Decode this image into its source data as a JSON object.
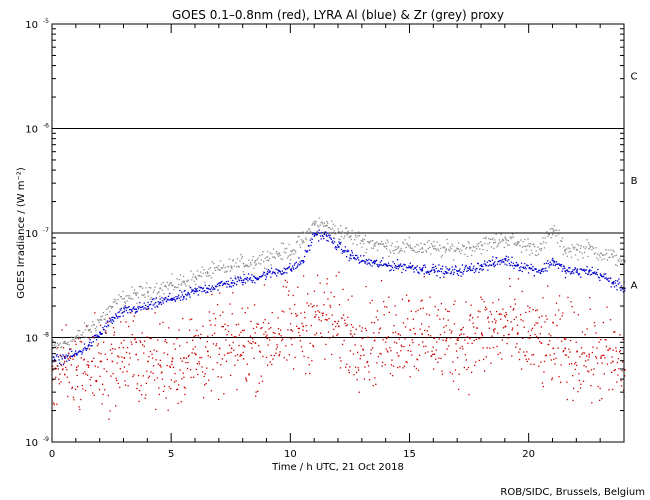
{
  "chart_data": {
    "type": "scatter",
    "title": "GOES 0.1–0.8nm (red), LYRA Al (blue) & Zr (grey) proxy",
    "xlabel": "Time / h UTC, 21 Oct 2018",
    "ylabel": "GOES Irradiance / (W m⁻²)",
    "xlim": [
      0,
      24
    ],
    "ylim": [
      1e-09,
      1e-05
    ],
    "yscale": "log",
    "x_ticks": [
      {
        "value": 0,
        "label": "0"
      },
      {
        "value": 5,
        "label": "5"
      },
      {
        "value": 10,
        "label": "10"
      },
      {
        "value": 15,
        "label": "15"
      },
      {
        "value": 20,
        "label": "20"
      }
    ],
    "y_ticks": [
      {
        "value": 1e-09,
        "base": "10",
        "exp": "-9"
      },
      {
        "value": 1e-08,
        "base": "10",
        "exp": "-8"
      },
      {
        "value": 1e-07,
        "base": "10",
        "exp": "-7"
      },
      {
        "value": 1e-06,
        "base": "10",
        "exp": "-6"
      },
      {
        "value": 1e-05,
        "base": "10",
        "exp": "-5"
      }
    ],
    "class_lines": [
      1e-08,
      1e-07,
      1e-06
    ],
    "flare_classes": [
      {
        "label": "A",
        "value": 3.2e-08
      },
      {
        "label": "B",
        "value": 3.2e-07
      },
      {
        "label": "C",
        "value": 3.2e-06
      }
    ],
    "series": [
      {
        "name": "Zr (grey)",
        "color": "#8c8c8c",
        "x": [
          0.0,
          0.5,
          1.0,
          1.5,
          2.0,
          2.5,
          3.0,
          3.5,
          4.0,
          4.5,
          5.0,
          5.5,
          6.0,
          6.5,
          7.0,
          7.5,
          8.0,
          8.5,
          9.0,
          9.5,
          10.0,
          10.5,
          11.0,
          11.5,
          12.0,
          12.5,
          13.0,
          13.5,
          14.0,
          14.5,
          15.0,
          15.5,
          16.0,
          16.5,
          17.0,
          17.5,
          18.0,
          18.5,
          19.0,
          19.5,
          20.0,
          20.5,
          21.0,
          21.5,
          22.0,
          22.5,
          23.0,
          23.5,
          24.0
        ],
        "y": [
          8e-09,
          9e-09,
          1e-08,
          1.2e-08,
          1.5e-08,
          2e-08,
          2.4e-08,
          2.6e-08,
          2.8e-08,
          3e-08,
          3.2e-08,
          3.5e-08,
          3.8e-08,
          4.2e-08,
          4.5e-08,
          4.8e-08,
          5.2e-08,
          5.5e-08,
          6e-08,
          6.5e-08,
          6.8e-08,
          8.5e-08,
          1.25e-07,
          1.2e-07,
          1.05e-07,
          9.5e-08,
          8.5e-08,
          8e-08,
          7.6e-08,
          7.5e-08,
          7.4e-08,
          7.3e-08,
          7.2e-08,
          7e-08,
          7.2e-08,
          7.4e-08,
          7.8e-08,
          8.2e-08,
          9e-08,
          8e-08,
          7.6e-08,
          7.2e-08,
          1.1e-07,
          7e-08,
          7e-08,
          7.2e-08,
          6.5e-08,
          6e-08,
          5.5e-08
        ]
      },
      {
        "name": "Al (blue)",
        "color": "#0000cc",
        "x": [
          0.0,
          0.5,
          1.0,
          1.5,
          2.0,
          2.5,
          3.0,
          3.5,
          4.0,
          4.5,
          5.0,
          5.5,
          6.0,
          6.5,
          7.0,
          7.5,
          8.0,
          8.5,
          9.0,
          9.5,
          10.0,
          10.5,
          11.0,
          11.5,
          12.0,
          12.5,
          13.0,
          13.5,
          14.0,
          14.5,
          15.0,
          15.5,
          16.0,
          16.5,
          17.0,
          17.5,
          18.0,
          18.5,
          19.0,
          19.5,
          20.0,
          20.5,
          21.0,
          21.5,
          22.0,
          22.5,
          23.0,
          23.5,
          24.0
        ],
        "y": [
          6e-09,
          6.5e-09,
          7e-09,
          8.5e-09,
          1.1e-08,
          1.5e-08,
          1.8e-08,
          1.9e-08,
          2e-08,
          2.2e-08,
          2.4e-08,
          2.5e-08,
          2.8e-08,
          3e-08,
          3.2e-08,
          3.4e-08,
          3.6e-08,
          3.8e-08,
          4.1e-08,
          4.4e-08,
          4.6e-08,
          5.5e-08,
          1e-07,
          9.5e-08,
          7.5e-08,
          6.2e-08,
          5.5e-08,
          5.2e-08,
          5e-08,
          4.9e-08,
          4.8e-08,
          4.6e-08,
          4.5e-08,
          4.3e-08,
          4.4e-08,
          4.6e-08,
          4.9e-08,
          5.2e-08,
          5.6e-08,
          5e-08,
          4.7e-08,
          4.4e-08,
          5.5e-08,
          4.4e-08,
          4.3e-08,
          4.4e-08,
          4e-08,
          3.4e-08,
          3e-08
        ]
      },
      {
        "name": "GOES 0.1–0.8nm (red)",
        "color": "#cc0000",
        "x": [
          0.0,
          0.5,
          1.0,
          1.5,
          2.0,
          2.5,
          3.0,
          3.5,
          4.0,
          4.5,
          5.0,
          5.5,
          6.0,
          6.5,
          7.0,
          7.5,
          8.0,
          8.5,
          9.0,
          9.5,
          10.0,
          10.5,
          11.0,
          11.5,
          12.0,
          12.5,
          13.0,
          13.5,
          14.0,
          14.5,
          15.0,
          15.5,
          16.0,
          16.5,
          17.0,
          17.5,
          18.0,
          18.5,
          19.0,
          19.5,
          20.0,
          20.5,
          21.0,
          21.5,
          22.0,
          22.5,
          23.0,
          23.5,
          24.0
        ],
        "y": [
          5e-09,
          4.5e-09,
          5e-09,
          5.5e-09,
          6e-09,
          6e-09,
          6.5e-09,
          7e-09,
          6e-09,
          5.5e-09,
          6e-09,
          6.5e-09,
          7e-09,
          7.5e-09,
          8e-09,
          8e-09,
          8.5e-09,
          9e-09,
          1e-08,
          1.1e-08,
          1.2e-08,
          1.3e-08,
          1.6e-08,
          1.5e-08,
          1.3e-08,
          1.1e-08,
          1e-08,
          9.5e-09,
          1e-08,
          1.1e-08,
          1.2e-08,
          1.1e-08,
          1e-08,
          9.5e-09,
          1e-08,
          1e-08,
          1.1e-08,
          1.2e-08,
          1.3e-08,
          1.1e-08,
          1e-08,
          9e-09,
          8e-09,
          8e-09,
          7.5e-09,
          7e-09,
          6.5e-09,
          6e-09,
          5e-09
        ]
      }
    ],
    "credit": "ROB/SIDC, Brussels, Belgium"
  }
}
